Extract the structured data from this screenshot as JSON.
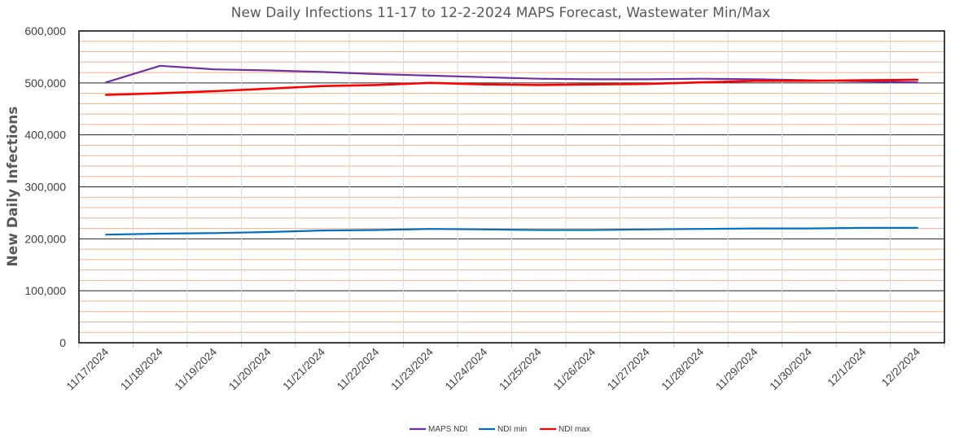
{
  "chart_data": {
    "type": "line",
    "title": "New Daily Infections 11-17 to 12-2-2024 MAPS Forecast, Wastewater Min/Max",
    "xlabel": "",
    "ylabel": "New Daily Infections",
    "ylim": [
      0,
      600000
    ],
    "y_major_ticks": [
      0,
      100000,
      200000,
      300000,
      400000,
      500000,
      600000
    ],
    "y_tick_labels": [
      "0",
      "100,000",
      "200,000",
      "300,000",
      "400,000",
      "500,000",
      "600,000"
    ],
    "y_minor_step": 20000,
    "categories": [
      "11/17/2024",
      "11/18/2024",
      "11/19/2024",
      "11/20/2024",
      "11/21/2024",
      "11/22/2024",
      "11/23/2024",
      "11/24/2024",
      "11/25/2024",
      "11/26/2024",
      "11/27/2024",
      "11/28/2024",
      "11/29/2024",
      "11/30/2024",
      "12/1/2024",
      "12/2/2024"
    ],
    "series": [
      {
        "name": "MAPS NDI",
        "color": "#7030a0",
        "values": [
          501000,
          533000,
          526000,
          524000,
          521000,
          517000,
          514000,
          511000,
          508000,
          507000,
          507000,
          508000,
          507000,
          505000,
          503000,
          501000
        ]
      },
      {
        "name": "NDI min",
        "color": "#0070c0",
        "values": [
          208000,
          210000,
          211000,
          213000,
          216000,
          217000,
          219000,
          218000,
          217000,
          217000,
          218000,
          219000,
          220000,
          220000,
          221000,
          221000
        ]
      },
      {
        "name": "NDI max",
        "color": "#ff0000",
        "values": [
          477000,
          480000,
          484000,
          489000,
          494000,
          496000,
          500000,
          497000,
          496000,
          497000,
          498000,
          501000,
          504000,
          504000,
          505000,
          506000
        ]
      }
    ],
    "legend_position": "bottom-center",
    "grid": true
  },
  "colors": {
    "major_grid": "#262626",
    "minor_grid": "#f4b183",
    "axis": "#000000"
  }
}
